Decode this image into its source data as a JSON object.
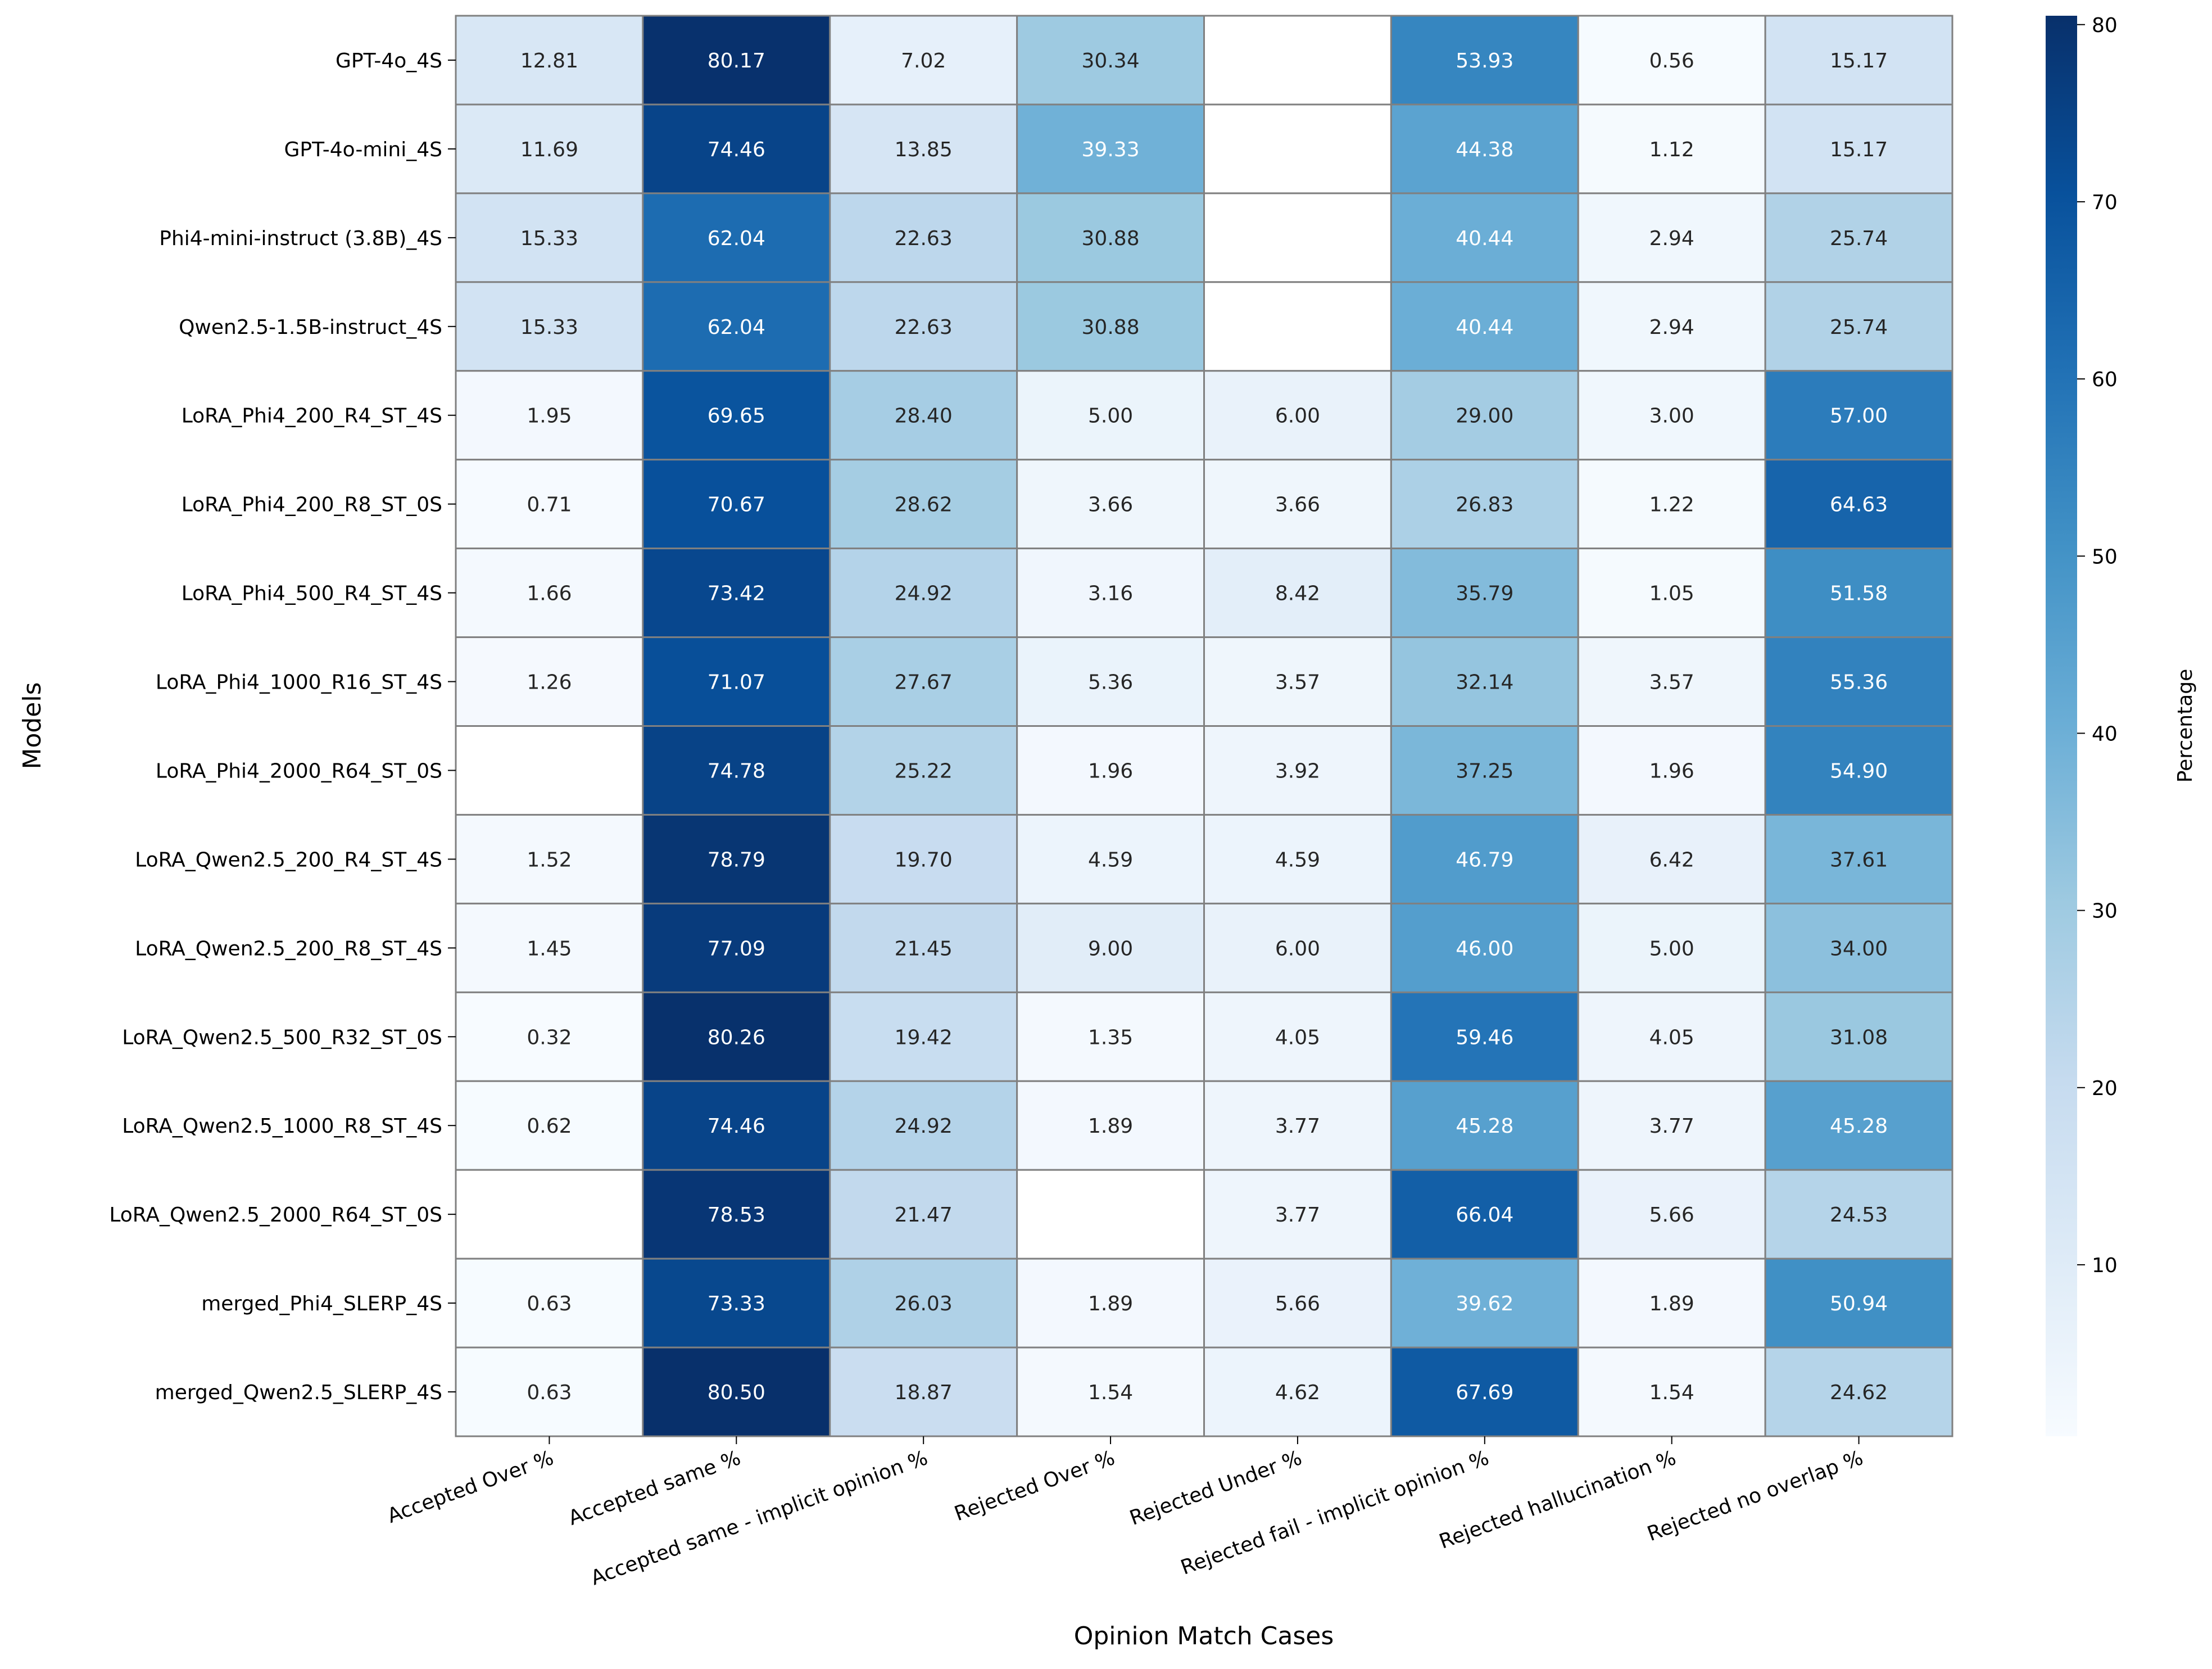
{
  "chart_data": {
    "type": "heatmap",
    "title": "",
    "xlabel": "Opinion Match Cases",
    "ylabel": "Models",
    "colorbar_label": "Percentage",
    "colormap": "Blues",
    "colorbar_range": [
      0.32,
      80.5
    ],
    "colorbar_ticks": [
      10,
      20,
      30,
      40,
      50,
      60,
      70,
      80
    ],
    "columns": [
      "Accepted Over %",
      "Accepted same %",
      "Accepted same - implicit opinion %",
      "Rejected Over %",
      "Rejected Under %",
      "Rejected fail - implicit opinion %",
      "Rejected hallucination %",
      "Rejected no overlap %"
    ],
    "rows": [
      "GPT-4o_4S",
      "GPT-4o-mini_4S",
      "Phi4-mini-instruct (3.8B)_4S",
      "Qwen2.5-1.5B-instruct_4S",
      "LoRA_Phi4_200_R4_ST_4S",
      "LoRA_Phi4_200_R8_ST_0S",
      "LoRA_Phi4_500_R4_ST_4S",
      "LoRA_Phi4_1000_R16_ST_4S",
      "LoRA_Phi4_2000_R64_ST_0S",
      "LoRA_Qwen2.5_200_R4_ST_4S",
      "LoRA_Qwen2.5_200_R8_ST_4S",
      "LoRA_Qwen2.5_500_R32_ST_0S",
      "LoRA_Qwen2.5_1000_R8_ST_4S",
      "LoRA_Qwen2.5_2000_R64_ST_0S",
      "merged_Phi4_SLERP_4S",
      "merged_Qwen2.5_SLERP_4S"
    ],
    "values": [
      [
        12.81,
        80.17,
        7.02,
        30.34,
        null,
        53.93,
        0.56,
        15.17
      ],
      [
        11.69,
        74.46,
        13.85,
        39.33,
        null,
        44.38,
        1.12,
        15.17
      ],
      [
        15.33,
        62.04,
        22.63,
        30.88,
        null,
        40.44,
        2.94,
        25.74
      ],
      [
        15.33,
        62.04,
        22.63,
        30.88,
        null,
        40.44,
        2.94,
        25.74
      ],
      [
        1.95,
        69.65,
        28.4,
        5.0,
        6.0,
        29.0,
        3.0,
        57.0
      ],
      [
        0.71,
        70.67,
        28.62,
        3.66,
        3.66,
        26.83,
        1.22,
        64.63
      ],
      [
        1.66,
        73.42,
        24.92,
        3.16,
        8.42,
        35.79,
        1.05,
        51.58
      ],
      [
        1.26,
        71.07,
        27.67,
        5.36,
        3.57,
        32.14,
        3.57,
        55.36
      ],
      [
        null,
        74.78,
        25.22,
        1.96,
        3.92,
        37.25,
        1.96,
        54.9
      ],
      [
        1.52,
        78.79,
        19.7,
        4.59,
        4.59,
        46.79,
        6.42,
        37.61
      ],
      [
        1.45,
        77.09,
        21.45,
        9.0,
        6.0,
        46.0,
        5.0,
        34.0
      ],
      [
        0.32,
        80.26,
        19.42,
        1.35,
        4.05,
        59.46,
        4.05,
        31.08
      ],
      [
        0.62,
        74.46,
        24.92,
        1.89,
        3.77,
        45.28,
        3.77,
        45.28
      ],
      [
        null,
        78.53,
        21.47,
        null,
        3.77,
        66.04,
        5.66,
        24.53
      ],
      [
        0.63,
        73.33,
        26.03,
        1.89,
        5.66,
        39.62,
        1.89,
        50.94
      ],
      [
        0.63,
        80.5,
        18.87,
        1.54,
        4.62,
        67.69,
        1.54,
        24.62
      ]
    ]
  }
}
